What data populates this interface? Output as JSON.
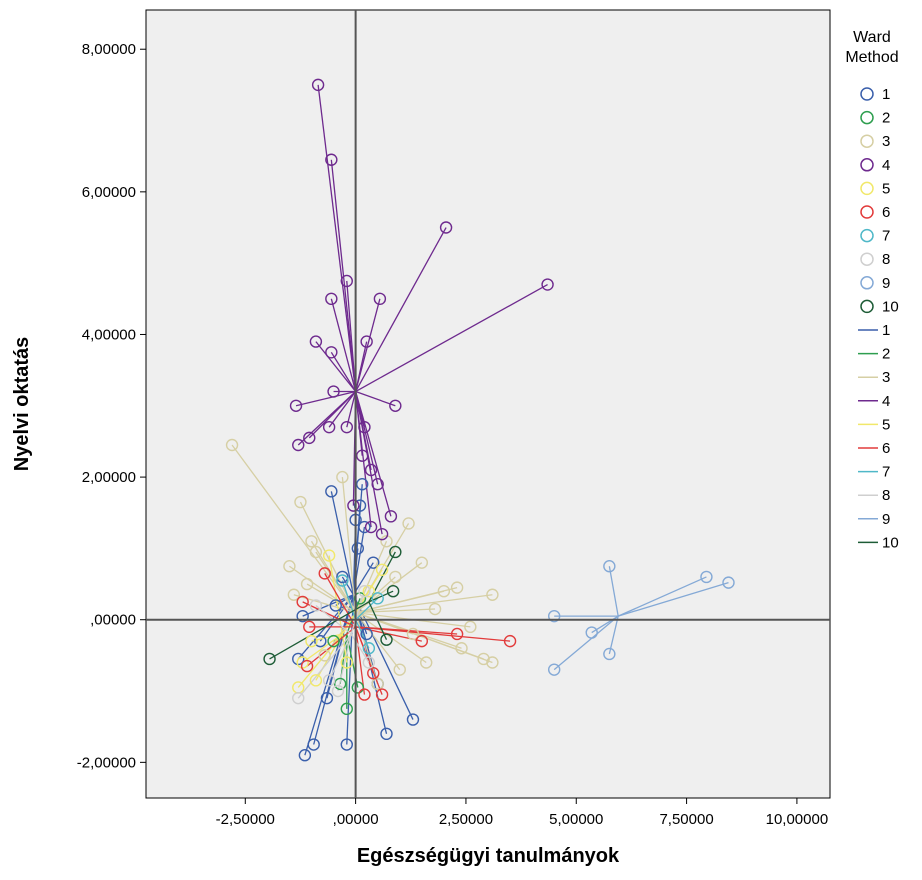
{
  "chart_data": {
    "type": "scatter",
    "title": "",
    "xlabel": "Egészségügyi tanulmányok",
    "ylabel": "Nyelvi oktatás",
    "xlim": [
      -4.75,
      10.75
    ],
    "ylim": [
      -2.5,
      8.55
    ],
    "x_ticks": [
      -2.5,
      0,
      2.5,
      5,
      7.5,
      10
    ],
    "x_tick_labels": [
      "-2,50000",
      ",00000",
      "2,50000",
      "5,00000",
      "7,50000",
      "10,00000"
    ],
    "y_ticks": [
      -2,
      0,
      2,
      4,
      6,
      8
    ],
    "y_tick_labels": [
      "-2,00000",
      ",00000",
      "2,00000",
      "4,00000",
      "6,00000",
      "8,00000"
    ],
    "reference_lines": {
      "x": 0,
      "y": 0
    },
    "grid": false,
    "plot_background": "#efefef",
    "legend": {
      "title_lines": [
        "Ward",
        "Method"
      ],
      "position": "right",
      "marker_items": [
        "1",
        "2",
        "3",
        "4",
        "5",
        "6",
        "7",
        "8",
        "9",
        "10"
      ],
      "line_items": [
        "1",
        "2",
        "3",
        "4",
        "5",
        "6",
        "7",
        "8",
        "9",
        "10"
      ]
    },
    "series": [
      {
        "name": "1",
        "color": "#3a5fab",
        "centroid": [
          -0.05,
          0.35
        ],
        "points": [
          [
            -0.55,
            1.8
          ],
          [
            -1.15,
            -1.9
          ],
          [
            -0.95,
            -1.75
          ],
          [
            -0.2,
            -1.75
          ],
          [
            0.7,
            -1.6
          ],
          [
            1.3,
            -1.4
          ],
          [
            -0.65,
            -1.1
          ],
          [
            -1.3,
            -0.55
          ],
          [
            -1.2,
            0.05
          ],
          [
            0.1,
            1.6
          ],
          [
            0.2,
            1.3
          ],
          [
            0.05,
            1.0
          ],
          [
            -0.3,
            0.6
          ],
          [
            0.4,
            0.8
          ],
          [
            0.15,
            1.9
          ],
          [
            -0.8,
            -0.3
          ],
          [
            0.5,
            -0.9
          ],
          [
            0.25,
            -0.2
          ],
          [
            -0.45,
            0.2
          ],
          [
            0.0,
            1.4
          ]
        ]
      },
      {
        "name": "2",
        "color": "#2e9e4f",
        "centroid": [
          -0.2,
          -0.2
        ],
        "points": [
          [
            -0.2,
            -1.25
          ],
          [
            -0.35,
            -0.9
          ],
          [
            0.05,
            -0.95
          ],
          [
            -0.5,
            -0.3
          ],
          [
            0.1,
            0.3
          ]
        ]
      },
      {
        "name": "3",
        "color": "#d6cfa4",
        "centroid": [
          0.0,
          0.1
        ],
        "points": [
          [
            -2.8,
            2.45
          ],
          [
            -1.25,
            1.65
          ],
          [
            -1.0,
            1.1
          ],
          [
            -1.5,
            0.75
          ],
          [
            -0.9,
            0.95
          ],
          [
            1.2,
            1.35
          ],
          [
            1.5,
            0.8
          ],
          [
            2.0,
            0.4
          ],
          [
            3.1,
            0.35
          ],
          [
            2.3,
            0.45
          ],
          [
            2.9,
            -0.55
          ],
          [
            3.1,
            -0.6
          ],
          [
            2.4,
            -0.4
          ],
          [
            1.0,
            -0.7
          ],
          [
            0.5,
            -0.9
          ],
          [
            -0.7,
            -0.5
          ],
          [
            -1.4,
            0.35
          ],
          [
            1.8,
            0.15
          ],
          [
            0.7,
            1.1
          ],
          [
            -0.3,
            2.0
          ],
          [
            1.3,
            -0.2
          ],
          [
            -1.1,
            0.5
          ],
          [
            0.9,
            0.6
          ],
          [
            2.6,
            -0.1
          ],
          [
            1.6,
            -0.6
          ]
        ]
      },
      {
        "name": "4",
        "color": "#6e2a8e",
        "centroid": [
          0.0,
          3.2
        ],
        "points": [
          [
            -0.85,
            7.5
          ],
          [
            -0.55,
            6.45
          ],
          [
            2.05,
            5.5
          ],
          [
            4.35,
            4.7
          ],
          [
            -0.2,
            4.75
          ],
          [
            0.55,
            4.5
          ],
          [
            -0.55,
            4.5
          ],
          [
            0.25,
            3.9
          ],
          [
            -0.9,
            3.9
          ],
          [
            -0.55,
            3.75
          ],
          [
            -0.5,
            3.2
          ],
          [
            0.9,
            3.0
          ],
          [
            -1.35,
            3.0
          ],
          [
            -1.05,
            2.55
          ],
          [
            -1.3,
            2.45
          ],
          [
            -0.6,
            2.7
          ],
          [
            -0.2,
            2.7
          ],
          [
            0.2,
            2.7
          ],
          [
            0.35,
            2.1
          ],
          [
            0.5,
            1.9
          ],
          [
            0.8,
            1.45
          ],
          [
            0.15,
            2.3
          ],
          [
            -0.05,
            1.6
          ],
          [
            0.35,
            1.3
          ],
          [
            0.6,
            1.2
          ]
        ]
      },
      {
        "name": "5",
        "color": "#f1e86a",
        "centroid": [
          -0.3,
          -0.2
        ],
        "points": [
          [
            -1.2,
            -0.6
          ],
          [
            -0.9,
            -0.85
          ],
          [
            -1.0,
            -0.3
          ],
          [
            0.3,
            0.4
          ],
          [
            -0.6,
            0.9
          ],
          [
            -1.3,
            -0.95
          ],
          [
            0.6,
            0.7
          ],
          [
            -0.2,
            -0.6
          ]
        ]
      },
      {
        "name": "6",
        "color": "#e23b3b",
        "centroid": [
          0.0,
          -0.1
        ],
        "points": [
          [
            3.5,
            -0.3
          ],
          [
            2.3,
            -0.2
          ],
          [
            1.5,
            -0.3
          ],
          [
            0.6,
            -1.05
          ],
          [
            0.2,
            -1.05
          ],
          [
            -1.1,
            -0.65
          ],
          [
            -1.2,
            0.25
          ],
          [
            -0.7,
            0.65
          ],
          [
            -1.05,
            -0.1
          ],
          [
            0.4,
            -0.75
          ]
        ]
      },
      {
        "name": "7",
        "color": "#4fb8c8",
        "centroid": [
          0.0,
          0.0
        ],
        "points": [
          [
            0.5,
            0.3
          ],
          [
            -0.3,
            0.55
          ],
          [
            0.3,
            -0.4
          ]
        ]
      },
      {
        "name": "8",
        "color": "#cfcfcf",
        "centroid": [
          -0.1,
          -0.2
        ],
        "points": [
          [
            -1.3,
            -1.1
          ],
          [
            -0.6,
            -0.85
          ],
          [
            0.2,
            0.4
          ],
          [
            -0.9,
            0.2
          ],
          [
            0.3,
            -0.6
          ],
          [
            -0.4,
            -1.0
          ]
        ]
      },
      {
        "name": "9",
        "color": "#84a9d6",
        "centroid": [
          5.95,
          0.05
        ],
        "points": [
          [
            5.75,
            0.75
          ],
          [
            7.95,
            0.6
          ],
          [
            8.45,
            0.52
          ],
          [
            4.5,
            0.05
          ],
          [
            5.35,
            -0.18
          ],
          [
            5.75,
            -0.48
          ],
          [
            4.5,
            -0.7
          ]
        ]
      },
      {
        "name": "10",
        "color": "#1d5c36",
        "centroid": [
          0.3,
          0.25
        ],
        "points": [
          [
            -1.95,
            -0.55
          ],
          [
            0.9,
            0.95
          ],
          [
            0.85,
            0.4
          ],
          [
            0.7,
            -0.28
          ]
        ]
      }
    ]
  }
}
